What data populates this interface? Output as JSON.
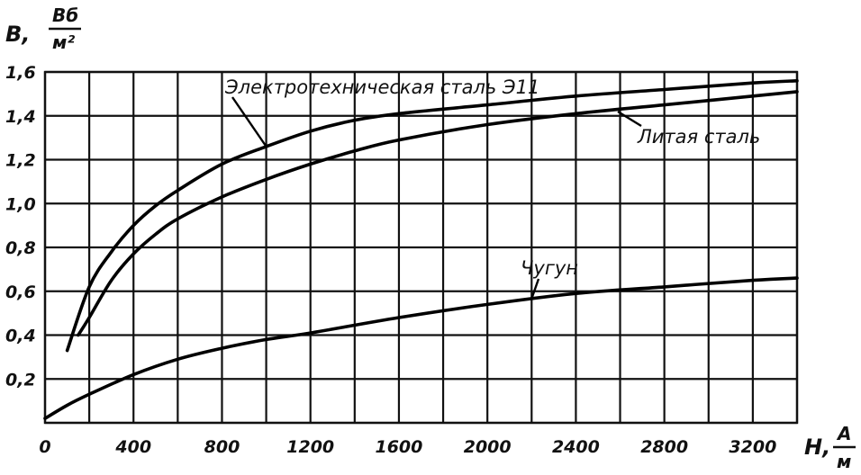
{
  "chart_data": {
    "type": "line",
    "ylabel": "B,",
    "yunit": {
      "num": "Вб",
      "den": "м²"
    },
    "xlabel": "H,",
    "xunit": {
      "num": "А",
      "den": "м"
    },
    "xlim": [
      0,
      3400
    ],
    "ylim": [
      0,
      1.6
    ],
    "grid": true,
    "x_ticks": [
      {
        "v": 0,
        "label": "0"
      },
      {
        "v": 400,
        "label": "400"
      },
      {
        "v": 800,
        "label": "800"
      },
      {
        "v": 1200,
        "label": "1200"
      },
      {
        "v": 1600,
        "label": "1600"
      },
      {
        "v": 2000,
        "label": "2000"
      },
      {
        "v": 2400,
        "label": "2400"
      },
      {
        "v": 2800,
        "label": "2800"
      },
      {
        "v": 3200,
        "label": "3200"
      }
    ],
    "y_ticks": [
      {
        "v": 0.2,
        "label": "0,2"
      },
      {
        "v": 0.4,
        "label": "0,4"
      },
      {
        "v": 0.6,
        "label": "0,6"
      },
      {
        "v": 0.8,
        "label": "0,8"
      },
      {
        "v": 1.0,
        "label": "1,0"
      },
      {
        "v": 1.2,
        "label": "1,2"
      },
      {
        "v": 1.4,
        "label": "1,4"
      },
      {
        "v": 1.6,
        "label": "1,6"
      }
    ],
    "series": [
      {
        "name": "Электротехническая сталь Э11",
        "x": [
          100,
          200,
          300,
          400,
          500,
          600,
          800,
          1000,
          1200,
          1400,
          1600,
          2000,
          2400,
          2800,
          3200,
          3400
        ],
        "y": [
          0.33,
          0.62,
          0.78,
          0.9,
          0.99,
          1.06,
          1.18,
          1.26,
          1.33,
          1.38,
          1.41,
          1.45,
          1.49,
          1.52,
          1.55,
          1.56
        ]
      },
      {
        "name": "Литая сталь",
        "x": [
          150,
          200,
          300,
          400,
          500,
          600,
          800,
          1000,
          1200,
          1400,
          1600,
          2000,
          2400,
          2800,
          3200,
          3400
        ],
        "y": [
          0.4,
          0.48,
          0.65,
          0.77,
          0.86,
          0.93,
          1.03,
          1.11,
          1.18,
          1.24,
          1.29,
          1.36,
          1.41,
          1.45,
          1.49,
          1.51
        ]
      },
      {
        "name": "Чугун",
        "x": [
          0,
          100,
          200,
          400,
          600,
          800,
          1000,
          1200,
          1600,
          2000,
          2400,
          2800,
          3200,
          3400
        ],
        "y": [
          0.02,
          0.08,
          0.13,
          0.22,
          0.29,
          0.34,
          0.38,
          0.41,
          0.48,
          0.54,
          0.59,
          0.62,
          0.65,
          0.66
        ]
      }
    ]
  }
}
